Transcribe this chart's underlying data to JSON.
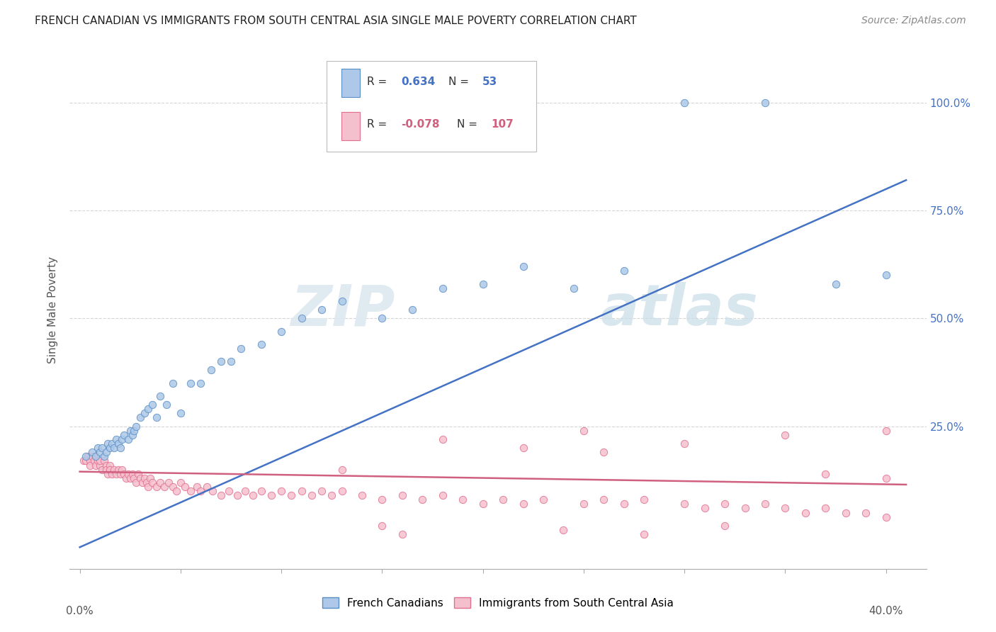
{
  "title": "FRENCH CANADIAN VS IMMIGRANTS FROM SOUTH CENTRAL ASIA SINGLE MALE POVERTY CORRELATION CHART",
  "source": "Source: ZipAtlas.com",
  "ylabel": "Single Male Poverty",
  "legend_label1": "French Canadians",
  "legend_label2": "Immigrants from South Central Asia",
  "r1": "0.634",
  "n1": "53",
  "r2": "-0.078",
  "n2": "107",
  "color_blue_fill": "#adc8e8",
  "color_blue_edge": "#5b8ec4",
  "color_pink_fill": "#f5c0ce",
  "color_pink_edge": "#e07090",
  "color_blue_line": "#4472c4",
  "color_pink_line": "#d06080",
  "color_blue_text": "#4472c4",
  "color_pink_text": "#d06080",
  "color_ytick": "#4472c4",
  "bg_color": "#ffffff",
  "watermark_zip": "ZIP",
  "watermark_atlas": "atlas",
  "grid_color": "#cccccc",
  "xlim": [
    -0.005,
    0.42
  ],
  "ylim": [
    -0.08,
    1.12
  ],
  "yticks": [
    0.25,
    0.5,
    0.75,
    1.0
  ],
  "ytick_labels": [
    "25.0%",
    "50.0%",
    "75.0%",
    "100.0%"
  ],
  "xtick_left_label": "0.0%",
  "xtick_right_label": "40.0%",
  "blue_line_x0": 0.0,
  "blue_line_y0": -0.03,
  "blue_line_x1": 0.41,
  "blue_line_y1": 0.82,
  "pink_line_x0": 0.0,
  "pink_line_y0": 0.145,
  "pink_line_x1": 0.41,
  "pink_line_y1": 0.115,
  "blue_x": [
    0.003,
    0.006,
    0.008,
    0.009,
    0.01,
    0.011,
    0.012,
    0.013,
    0.014,
    0.015,
    0.016,
    0.017,
    0.018,
    0.019,
    0.02,
    0.021,
    0.022,
    0.024,
    0.025,
    0.026,
    0.027,
    0.028,
    0.03,
    0.032,
    0.034,
    0.036,
    0.038,
    0.04,
    0.043,
    0.046,
    0.05,
    0.055,
    0.06,
    0.065,
    0.07,
    0.075,
    0.08,
    0.09,
    0.1,
    0.11,
    0.12,
    0.13,
    0.15,
    0.165,
    0.18,
    0.2,
    0.22,
    0.245,
    0.27,
    0.3,
    0.34,
    0.375,
    0.4
  ],
  "blue_y": [
    0.18,
    0.19,
    0.18,
    0.2,
    0.19,
    0.2,
    0.18,
    0.19,
    0.21,
    0.2,
    0.21,
    0.2,
    0.22,
    0.21,
    0.2,
    0.22,
    0.23,
    0.22,
    0.24,
    0.23,
    0.24,
    0.25,
    0.27,
    0.28,
    0.29,
    0.3,
    0.27,
    0.32,
    0.3,
    0.35,
    0.28,
    0.35,
    0.35,
    0.38,
    0.4,
    0.4,
    0.43,
    0.44,
    0.47,
    0.5,
    0.52,
    0.54,
    0.5,
    0.52,
    0.57,
    0.58,
    0.62,
    0.57,
    0.61,
    1.0,
    1.0,
    0.58,
    0.6
  ],
  "pink_x": [
    0.002,
    0.003,
    0.004,
    0.005,
    0.005,
    0.006,
    0.007,
    0.008,
    0.008,
    0.009,
    0.01,
    0.01,
    0.011,
    0.012,
    0.013,
    0.013,
    0.014,
    0.015,
    0.015,
    0.016,
    0.017,
    0.018,
    0.019,
    0.02,
    0.021,
    0.022,
    0.023,
    0.024,
    0.025,
    0.026,
    0.027,
    0.028,
    0.029,
    0.03,
    0.031,
    0.032,
    0.033,
    0.034,
    0.035,
    0.036,
    0.038,
    0.04,
    0.042,
    0.044,
    0.046,
    0.048,
    0.05,
    0.052,
    0.055,
    0.058,
    0.06,
    0.063,
    0.066,
    0.07,
    0.074,
    0.078,
    0.082,
    0.086,
    0.09,
    0.095,
    0.1,
    0.105,
    0.11,
    0.115,
    0.12,
    0.125,
    0.13,
    0.14,
    0.15,
    0.16,
    0.17,
    0.18,
    0.19,
    0.2,
    0.21,
    0.22,
    0.23,
    0.25,
    0.26,
    0.27,
    0.28,
    0.3,
    0.31,
    0.32,
    0.33,
    0.34,
    0.35,
    0.36,
    0.37,
    0.38,
    0.39,
    0.4,
    0.18,
    0.22,
    0.26,
    0.3,
    0.35,
    0.37,
    0.4,
    0.28,
    0.24,
    0.32,
    0.4,
    0.16,
    0.15,
    0.25,
    0.13
  ],
  "pink_y": [
    0.17,
    0.17,
    0.18,
    0.17,
    0.16,
    0.18,
    0.17,
    0.16,
    0.18,
    0.17,
    0.16,
    0.17,
    0.15,
    0.17,
    0.16,
    0.15,
    0.14,
    0.16,
    0.15,
    0.14,
    0.15,
    0.14,
    0.15,
    0.14,
    0.15,
    0.14,
    0.13,
    0.14,
    0.13,
    0.14,
    0.13,
    0.12,
    0.14,
    0.13,
    0.12,
    0.13,
    0.12,
    0.11,
    0.13,
    0.12,
    0.11,
    0.12,
    0.11,
    0.12,
    0.11,
    0.1,
    0.12,
    0.11,
    0.1,
    0.11,
    0.1,
    0.11,
    0.1,
    0.09,
    0.1,
    0.09,
    0.1,
    0.09,
    0.1,
    0.09,
    0.1,
    0.09,
    0.1,
    0.09,
    0.1,
    0.09,
    0.1,
    0.09,
    0.08,
    0.09,
    0.08,
    0.09,
    0.08,
    0.07,
    0.08,
    0.07,
    0.08,
    0.07,
    0.08,
    0.07,
    0.08,
    0.07,
    0.06,
    0.07,
    0.06,
    0.07,
    0.06,
    0.05,
    0.06,
    0.05,
    0.05,
    0.04,
    0.22,
    0.2,
    0.19,
    0.21,
    0.23,
    0.14,
    0.13,
    0.0,
    0.01,
    0.02,
    0.24,
    0.0,
    0.02,
    0.24,
    0.15
  ]
}
